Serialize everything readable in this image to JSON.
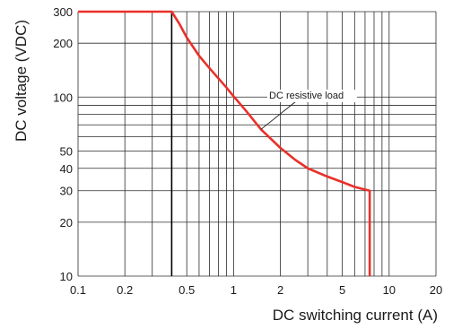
{
  "chart_data": {
    "type": "line",
    "xlabel": "DC switching current (A)",
    "ylabel": "DC voltage (VDC)",
    "x_scale": "log",
    "y_scale": "log",
    "xlim": [
      0.1,
      20
    ],
    "ylim": [
      10,
      300
    ],
    "x_ticks": [
      0.1,
      0.2,
      0.5,
      1,
      2,
      5,
      10,
      20
    ],
    "x_tick_labels": [
      "0.1",
      "0.2",
      "0.5",
      "1",
      "2",
      "5",
      "10",
      "20"
    ],
    "y_ticks": [
      10,
      20,
      30,
      40,
      50,
      100,
      200,
      300
    ],
    "y_tick_labels": [
      "10",
      "20",
      "30",
      "40",
      "50",
      "100",
      "200",
      "300"
    ],
    "x_minor_gridlines": [
      0.3,
      0.4,
      0.6,
      0.7,
      0.8,
      0.9,
      3,
      4,
      6,
      7,
      8,
      9
    ],
    "y_minor_gridlines": [
      60,
      70,
      80,
      90
    ],
    "grid": true,
    "annotation": {
      "text": "DC resistive load",
      "points_to": {
        "x": 1.5,
        "y": 66
      }
    },
    "series": [
      {
        "name": "DC resistive load",
        "color": "#e8312a",
        "x": [
          0.1,
          0.4,
          0.45,
          0.5,
          0.6,
          0.7,
          0.8,
          0.9,
          1.0,
          1.2,
          1.5,
          2.0,
          2.5,
          3.0,
          4.0,
          5.0,
          6.0,
          7.5,
          7.5
        ],
        "y": [
          300,
          300,
          255,
          215,
          170,
          145,
          127,
          113,
          101,
          84,
          66,
          52,
          44.5,
          40,
          36,
          33.5,
          31.5,
          30,
          10
        ]
      }
    ],
    "extra_lines": [
      {
        "color": "#000000",
        "x": [
          0.4,
          0.4
        ],
        "y": [
          10,
          300
        ]
      }
    ]
  }
}
